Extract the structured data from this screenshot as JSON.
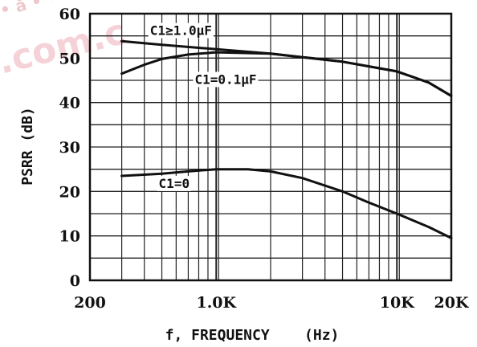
{
  "chart_data": {
    "type": "line",
    "title": "",
    "xlabel": "f, FREQUENCY    (Hz)",
    "ylabel": "PSRR (dB)",
    "xscale": "log",
    "xlim": [
      200,
      20000
    ],
    "ylim": [
      0,
      60
    ],
    "grid": true,
    "legend": "none",
    "x_ticks": [
      {
        "value": 200,
        "label": "200"
      },
      {
        "value": 1000,
        "label": "1.0K"
      },
      {
        "value": 10000,
        "label": "10K"
      },
      {
        "value": 20000,
        "label": "20K"
      }
    ],
    "y_ticks": [
      0,
      10,
      20,
      30,
      40,
      50,
      60
    ],
    "series": [
      {
        "name": "C1≥1.0μF",
        "points": [
          [
            300,
            53.8
          ],
          [
            500,
            53
          ],
          [
            1000,
            52
          ],
          [
            2000,
            51
          ],
          [
            3000,
            50.2
          ],
          [
            5000,
            49.2
          ],
          [
            10000,
            47
          ],
          [
            15000,
            44.5
          ],
          [
            20000,
            41.5
          ]
        ]
      },
      {
        "name": "C1=0.1μF",
        "points": [
          [
            300,
            46.5
          ],
          [
            400,
            48.5
          ],
          [
            500,
            49.8
          ],
          [
            700,
            50.8
          ],
          [
            1000,
            51.3
          ],
          [
            2000,
            51
          ],
          [
            3000,
            50.2
          ],
          [
            5000,
            49.2
          ],
          [
            10000,
            47
          ],
          [
            15000,
            44.5
          ],
          [
            20000,
            41.5
          ]
        ]
      },
      {
        "name": "C1=0",
        "points": [
          [
            300,
            23.5
          ],
          [
            500,
            24
          ],
          [
            700,
            24.5
          ],
          [
            1000,
            25
          ],
          [
            1500,
            25
          ],
          [
            2000,
            24.5
          ],
          [
            3000,
            23
          ],
          [
            5000,
            20
          ],
          [
            7000,
            17.5
          ],
          [
            10000,
            15
          ],
          [
            15000,
            12
          ],
          [
            20000,
            9.5
          ]
        ]
      }
    ]
  },
  "watermark": {
    "top_text": "• å • •",
    "bottom_text": ".com.c"
  }
}
